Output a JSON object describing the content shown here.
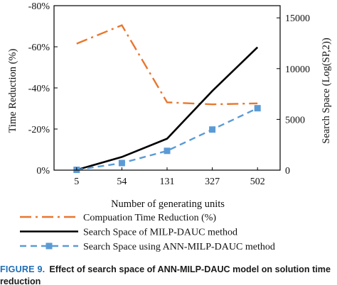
{
  "chart_data": {
    "type": "line",
    "categories": [
      "5",
      "54",
      "131",
      "327",
      "502"
    ],
    "xlabel": "Number of generating units",
    "y_left": {
      "label": "Time Reduction (%)",
      "ticks": [
        "-80%",
        "-60%",
        "-40%",
        "-20%",
        "0%"
      ],
      "tick_values": [
        -80,
        -60,
        -40,
        -20,
        0
      ],
      "range": [
        0,
        -80
      ]
    },
    "y_right": {
      "label": "Search Space (Log(SP,2))",
      "ticks": [
        "0",
        "5000",
        "10000",
        "15000"
      ],
      "tick_values": [
        0,
        5000,
        10000,
        15000
      ],
      "range": [
        0,
        16200
      ]
    },
    "series": [
      {
        "name": "Compuation Time Reduction (%)",
        "axis": "left",
        "color": "#e8772e",
        "style": "dashdot",
        "values": [
          -61.5,
          -70.5,
          -33,
          -32,
          -32.5
        ]
      },
      {
        "name": "Search Space of MILP-DAUC method",
        "axis": "right",
        "color": "#000000",
        "style": "solid",
        "values": [
          30,
          1300,
          3100,
          7800,
          12100
        ]
      },
      {
        "name": "Search Space using ANN-MILP-DAUC method",
        "axis": "right",
        "color": "#5b9bd5",
        "style": "dashed-square",
        "values": [
          30,
          700,
          1900,
          4000,
          6100
        ]
      }
    ]
  },
  "caption": {
    "number": "FIGURE 9.",
    "text": "Effect of search space of ANN-MILP-DAUC model on solution time reduction"
  }
}
